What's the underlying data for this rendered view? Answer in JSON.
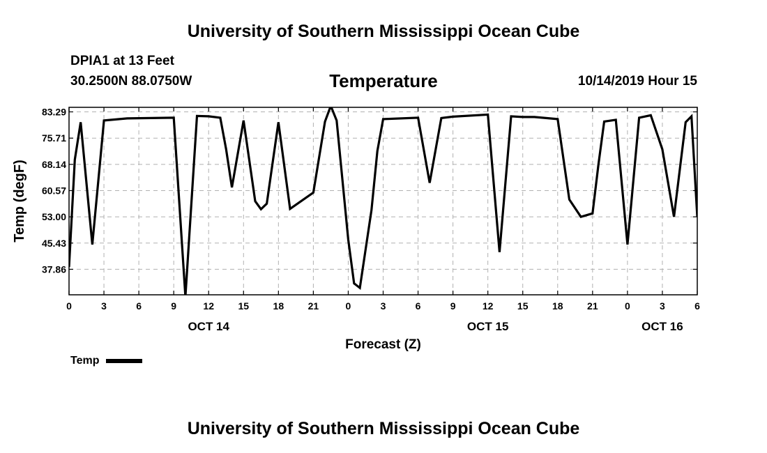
{
  "header": {
    "title_top": "University of Southern Mississippi Ocean Cube",
    "title_bottom": "University of Southern Mississippi Ocean Cube",
    "station": "DPIA1 at 13 Feet",
    "coords": "30.2500N 88.0750W",
    "datetime": "10/14/2019 Hour 15"
  },
  "legend": {
    "label": "Temp"
  },
  "chart_data": {
    "type": "line",
    "title": "Temperature",
    "xlabel": "Forecast (Z)",
    "ylabel": "Temp (degF)",
    "xlim": [
      0,
      54
    ],
    "ylim": [
      30.5,
      84.6
    ],
    "yticks": [
      "37.86",
      "45.43",
      "53.00",
      "60.57",
      "68.14",
      "75.71",
      "83.29"
    ],
    "xticks": [
      "0",
      "3",
      "6",
      "9",
      "12",
      "15",
      "18",
      "21",
      "0",
      "3",
      "6",
      "9",
      "12",
      "15",
      "18",
      "21",
      "0",
      "3",
      "6"
    ],
    "date_labels": [
      {
        "label": "OCT 14",
        "x": 12
      },
      {
        "label": "OCT 15",
        "x": 36
      },
      {
        "label": "OCT 16",
        "x": 51
      }
    ],
    "grid": true,
    "series": [
      {
        "name": "Temp",
        "color": "#000000",
        "x": [
          0,
          0.5,
          1,
          2,
          3,
          5,
          9,
          10,
          11,
          12,
          13,
          13.5,
          14,
          15,
          16,
          16.5,
          17,
          18,
          19,
          21,
          22,
          22.5,
          23,
          24,
          24.5,
          25,
          26,
          26.5,
          27,
          30,
          31,
          32,
          33,
          36,
          37,
          38,
          39,
          39.5,
          40,
          41,
          42,
          43,
          44,
          45,
          45.5,
          46,
          47,
          48,
          49,
          50,
          51,
          52,
          53,
          53.5,
          54
        ],
        "y": [
          38.5,
          69.5,
          80.3,
          45.0,
          80.8,
          81.4,
          81.6,
          30.0,
          82.1,
          82.0,
          81.6,
          72.5,
          61.5,
          80.8,
          57.5,
          55.2,
          56.8,
          80.3,
          55.3,
          60.0,
          80.5,
          85.0,
          80.8,
          46.5,
          33.8,
          32.5,
          55.0,
          72.0,
          81.2,
          81.6,
          62.8,
          81.5,
          81.9,
          82.5,
          42.8,
          82.0,
          81.8,
          81.8,
          81.8,
          81.5,
          81.2,
          58.0,
          53.0,
          54.0,
          68.0,
          80.5,
          81.0,
          45.0,
          81.6,
          82.3,
          72.5,
          53.0,
          80.3,
          82.0,
          53.0
        ]
      }
    ]
  }
}
